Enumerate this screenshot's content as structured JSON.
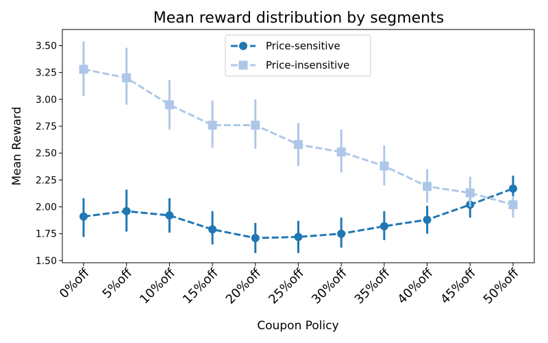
{
  "chart_data": {
    "type": "line",
    "title": "Mean reward distribution by segments",
    "xlabel": "Coupon Policy",
    "ylabel": "Mean Reward",
    "categories": [
      "0%off",
      "5%off",
      "10%off",
      "15%off",
      "20%off",
      "25%off",
      "30%off",
      "35%off",
      "40%off",
      "45%off",
      "50%off"
    ],
    "ylim": [
      1.48,
      3.65
    ],
    "yticks": [
      "1.50",
      "1.75",
      "2.00",
      "2.25",
      "2.50",
      "2.75",
      "3.00",
      "3.25",
      "3.50"
    ],
    "grid": false,
    "legend_position": "top-center",
    "series": [
      {
        "name": "Price-sensitive",
        "color": "#1f77b4",
        "marker": "circle",
        "linestyle": "dashed",
        "values": [
          1.91,
          1.96,
          1.92,
          1.79,
          1.71,
          1.72,
          1.75,
          1.82,
          1.88,
          2.02,
          2.17
        ],
        "err_low": [
          1.72,
          1.77,
          1.76,
          1.65,
          1.57,
          1.57,
          1.62,
          1.69,
          1.75,
          1.9,
          2.05
        ],
        "err_high": [
          2.08,
          2.16,
          2.08,
          1.96,
          1.85,
          1.87,
          1.9,
          1.96,
          2.01,
          2.09,
          2.29
        ]
      },
      {
        "name": "Price-insensitive",
        "color": "#aec7e8",
        "marker": "square",
        "linestyle": "dashed",
        "values": [
          3.28,
          3.2,
          2.95,
          2.76,
          2.76,
          2.58,
          2.51,
          2.38,
          2.19,
          2.13,
          2.02
        ],
        "err_low": [
          3.03,
          2.95,
          2.72,
          2.55,
          2.54,
          2.38,
          2.32,
          2.2,
          2.04,
          2.0,
          1.9
        ],
        "err_high": [
          3.54,
          3.48,
          3.18,
          2.99,
          3.0,
          2.78,
          2.72,
          2.57,
          2.35,
          2.28,
          2.1
        ]
      }
    ]
  }
}
